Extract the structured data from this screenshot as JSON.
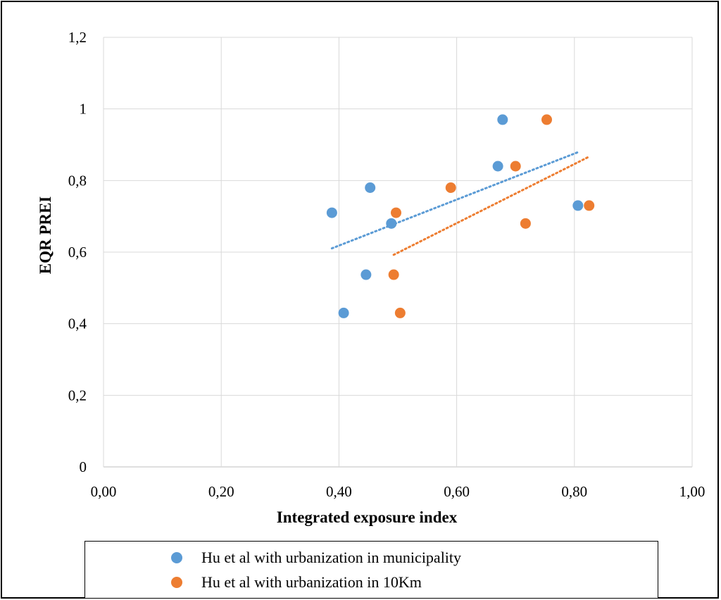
{
  "chart_data": {
    "type": "scatter",
    "title": "",
    "xlabel": "Integrated exposure index",
    "ylabel": "EQR PREI",
    "xlim": [
      0,
      1
    ],
    "ylim": [
      0,
      1.2
    ],
    "x_ticks": [
      "0,00",
      "0,20",
      "0,40",
      "0,60",
      "0,80",
      "1,00"
    ],
    "x_tick_values": [
      0,
      0.2,
      0.4,
      0.6,
      0.8,
      1.0
    ],
    "y_ticks": [
      "0",
      "0,2",
      "0,4",
      "0,6",
      "0,8",
      "1",
      "1,2"
    ],
    "y_tick_values": [
      0,
      0.2,
      0.4,
      0.6,
      0.8,
      1.0,
      1.2
    ],
    "grid": true,
    "legend_position": "bottom",
    "series": [
      {
        "name": "Hu et al with urbanization in  municipality",
        "color": "#5b9bd5",
        "trendline": "linear, dotted",
        "points": [
          {
            "x": 0.388,
            "y": 0.71
          },
          {
            "x": 0.408,
            "y": 0.43
          },
          {
            "x": 0.446,
            "y": 0.537
          },
          {
            "x": 0.453,
            "y": 0.78
          },
          {
            "x": 0.489,
            "y": 0.68
          },
          {
            "x": 0.67,
            "y": 0.84
          },
          {
            "x": 0.678,
            "y": 0.97
          },
          {
            "x": 0.806,
            "y": 0.73
          }
        ]
      },
      {
        "name": "Hu et al with urbanization in 10Km",
        "color": "#ed7d31",
        "trendline": "linear, dotted",
        "points": [
          {
            "x": 0.493,
            "y": 0.537
          },
          {
            "x": 0.497,
            "y": 0.71
          },
          {
            "x": 0.504,
            "y": 0.43
          },
          {
            "x": 0.59,
            "y": 0.78
          },
          {
            "x": 0.7,
            "y": 0.84
          },
          {
            "x": 0.717,
            "y": 0.68
          },
          {
            "x": 0.753,
            "y": 0.97
          },
          {
            "x": 0.825,
            "y": 0.73
          }
        ]
      }
    ]
  }
}
